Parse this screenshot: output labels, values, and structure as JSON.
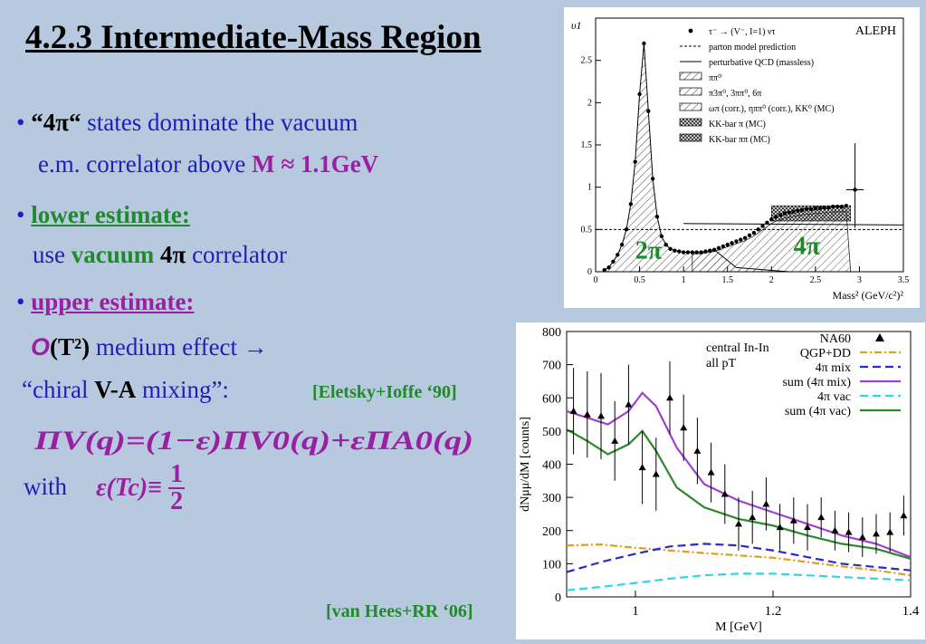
{
  "title": "4.2.3 Intermediate-Mass Region",
  "bullet1": {
    "bullet": "•",
    "q_open": "“",
    "four_pi": "4π",
    "q_close": "“",
    "text_a": " states dominate the vacuum",
    "text_b": "e.m. correlator above ",
    "mass": "M ≈ 1.1GeV"
  },
  "bullet2": {
    "bullet": "•",
    "heading": "lower estimate:",
    "use": "use ",
    "vacuum": "vacuum",
    "space": " ",
    "four_pi": "4π",
    "correlator": " correlator"
  },
  "bullet3": {
    "bullet": "•",
    "heading": "upper estimate:",
    "order_O": "O",
    "order_T": "(T²)",
    "medium": "  medium effect →",
    "chiral_a": "“chiral ",
    "va": "V-A",
    "chiral_b": " mixing”:",
    "citation": "[Eletsky+Ioffe ‘90]",
    "formula": "ΠV(q)=(1−ε)ΠV0(q)+εΠA0(q)",
    "with": "with",
    "eps_tc": "ε(Tc)≡",
    "half_num": "1",
    "half_den": "2"
  },
  "bottom_citation": "[van Hees+RR ‘06]",
  "chart_data": [
    {
      "type": "bar",
      "name_label": "ALEPH",
      "ylabel": "υ1",
      "xlabel": "Mass² (GeV/c²)²",
      "xlim": [
        0,
        3.5
      ],
      "ylim": [
        0,
        3.0
      ],
      "x_ticks": [
        "0",
        "0.5",
        "1",
        "1.5",
        "2",
        "2.5",
        "3",
        "3.5"
      ],
      "y_ticks": [
        "0",
        "0.5",
        "1",
        "1.5",
        "2",
        "2.5"
      ],
      "legend": [
        "τ⁻ → (V⁻, I=1) ντ",
        "parton model prediction",
        "perturbative QCD (massless)",
        "ππ⁰",
        "π3π⁰, 3ππ⁰, 6π",
        "ωπ (corr.), ηππ⁰ (corr.), KK⁰ (MC)",
        "KK-bar π (MC)",
        "KK-bar ππ (MC)"
      ],
      "annotations": [
        "2π",
        "4π"
      ],
      "data_x": [
        0.1,
        0.15,
        0.2,
        0.25,
        0.3,
        0.35,
        0.4,
        0.45,
        0.5,
        0.55,
        0.6,
        0.65,
        0.7,
        0.75,
        0.8,
        0.85,
        0.9,
        0.95,
        1.0,
        1.05,
        1.1,
        1.15,
        1.2,
        1.25,
        1.3,
        1.35,
        1.4,
        1.45,
        1.5,
        1.55,
        1.6,
        1.65,
        1.7,
        1.75,
        1.8,
        1.85,
        1.9,
        1.95,
        2.0,
        2.05,
        2.1,
        2.15,
        2.2,
        2.25,
        2.3,
        2.35,
        2.4,
        2.45,
        2.5,
        2.55,
        2.6,
        2.65,
        2.7,
        2.75,
        2.8,
        2.85,
        2.95
      ],
      "data_y": [
        0.02,
        0.05,
        0.12,
        0.2,
        0.32,
        0.5,
        0.8,
        1.3,
        2.1,
        2.7,
        1.9,
        1.1,
        0.65,
        0.42,
        0.32,
        0.27,
        0.25,
        0.24,
        0.23,
        0.23,
        0.23,
        0.23,
        0.23,
        0.24,
        0.25,
        0.26,
        0.28,
        0.3,
        0.32,
        0.34,
        0.36,
        0.38,
        0.4,
        0.43,
        0.46,
        0.5,
        0.54,
        0.58,
        0.62,
        0.65,
        0.67,
        0.69,
        0.7,
        0.71,
        0.72,
        0.73,
        0.74,
        0.74,
        0.75,
        0.75,
        0.76,
        0.76,
        0.77,
        0.77,
        0.77,
        0.78,
        0.97
      ],
      "pqcd_y": 0.57,
      "parton_y": 0.5
    },
    {
      "type": "line",
      "title": "central In-In",
      "subtitle": "all pT",
      "xlabel": "M [GeV]",
      "ylabel": "dNμμ/dM [counts]",
      "xlim": [
        0.9,
        1.4
      ],
      "ylim": [
        0,
        800
      ],
      "x_ticks": [
        "1",
        "1.2",
        "1.4"
      ],
      "y_ticks": [
        "0",
        "100",
        "200",
        "300",
        "400",
        "500",
        "600",
        "700",
        "800"
      ],
      "series": [
        {
          "name": "QGP+DD",
          "color": "#e89a1a",
          "dash": "8,3,2,3",
          "x": [
            0.9,
            0.95,
            1.0,
            1.05,
            1.1,
            1.15,
            1.2,
            1.25,
            1.3,
            1.35,
            1.4
          ],
          "y": [
            155,
            158,
            148,
            140,
            132,
            125,
            118,
            105,
            92,
            80,
            65
          ]
        },
        {
          "name": "4π mix",
          "color": "#2a2acb",
          "dash": "9,5",
          "x": [
            0.9,
            0.95,
            1.0,
            1.05,
            1.1,
            1.15,
            1.2,
            1.25,
            1.3,
            1.35,
            1.4
          ],
          "y": [
            75,
            105,
            130,
            152,
            160,
            155,
            140,
            120,
            100,
            90,
            80
          ]
        },
        {
          "name": "sum (4π mix)",
          "color": "#a13fd0",
          "dash": "",
          "x": [
            0.9,
            0.93,
            0.96,
            0.99,
            1.01,
            1.03,
            1.06,
            1.1,
            1.15,
            1.2,
            1.25,
            1.3,
            1.35,
            1.4
          ],
          "y": [
            560,
            540,
            520,
            560,
            615,
            575,
            450,
            340,
            290,
            255,
            220,
            185,
            160,
            120
          ]
        },
        {
          "name": "4π vac",
          "color": "#2fd6e0",
          "dash": "9,5",
          "x": [
            0.9,
            0.95,
            1.0,
            1.05,
            1.1,
            1.15,
            1.2,
            1.25,
            1.3,
            1.35,
            1.4
          ],
          "y": [
            20,
            30,
            42,
            55,
            65,
            70,
            70,
            65,
            60,
            55,
            50
          ]
        },
        {
          "name": "sum (4π vac)",
          "color": "#2a8a2a",
          "dash": "",
          "x": [
            0.9,
            0.93,
            0.96,
            0.99,
            1.01,
            1.03,
            1.06,
            1.1,
            1.15,
            1.2,
            1.25,
            1.3,
            1.35,
            1.4
          ],
          "y": [
            505,
            470,
            430,
            460,
            500,
            440,
            330,
            270,
            235,
            215,
            185,
            160,
            145,
            115
          ]
        }
      ],
      "legend_data_label": "NA60",
      "points_x": [
        0.91,
        0.93,
        0.95,
        0.97,
        0.99,
        1.01,
        1.03,
        1.05,
        1.07,
        1.09,
        1.11,
        1.13,
        1.15,
        1.17,
        1.19,
        1.21,
        1.23,
        1.25,
        1.27,
        1.29,
        1.31,
        1.33,
        1.35,
        1.37,
        1.39
      ],
      "points_y": [
        560,
        550,
        545,
        470,
        580,
        390,
        370,
        600,
        510,
        440,
        375,
        310,
        220,
        240,
        280,
        210,
        230,
        210,
        240,
        200,
        195,
        180,
        190,
        195,
        245
      ],
      "points_err": [
        130,
        130,
        130,
        120,
        120,
        110,
        110,
        110,
        100,
        100,
        90,
        90,
        80,
        80,
        80,
        70,
        70,
        70,
        60,
        60,
        60,
        60,
        60,
        60,
        60
      ]
    }
  ]
}
